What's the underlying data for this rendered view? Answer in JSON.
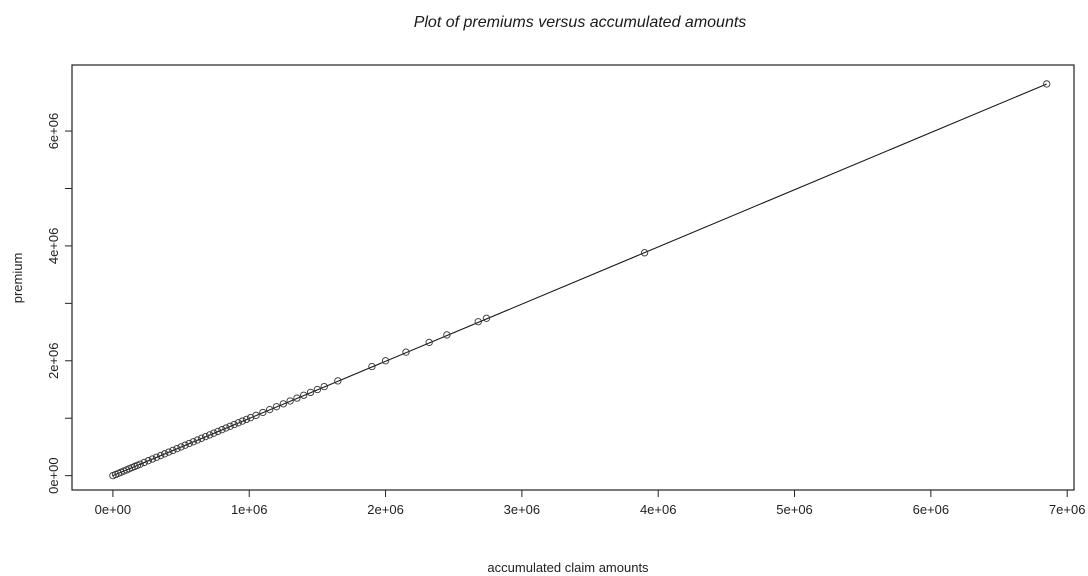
{
  "chart_data": {
    "type": "scatter",
    "title": "Plot of premiums versus accumulated amounts",
    "xlabel": "accumulated claim amounts",
    "ylabel": "premium",
    "xlim": [
      -300000,
      7050000
    ],
    "ylim": [
      -250000,
      7150000
    ],
    "x_ticks": [
      0,
      1000000,
      2000000,
      3000000,
      4000000,
      5000000,
      6000000,
      7000000
    ],
    "x_tick_labels": [
      "0e+00",
      "1e+06",
      "2e+06",
      "3e+06",
      "4e+06",
      "5e+06",
      "6e+06",
      "7e+06"
    ],
    "y_ticks": [
      0,
      1000000,
      2000000,
      3000000,
      4000000,
      5000000,
      6000000
    ],
    "y_tick_labels": [
      "0e+00",
      "",
      "2e+06",
      "",
      "4e+06",
      "",
      "6e+06"
    ],
    "grid": false,
    "series": [
      {
        "marker": "open-circle",
        "x": [
          0,
          20000,
          40000,
          60000,
          80000,
          100000,
          120000,
          140000,
          160000,
          180000,
          200000,
          230000,
          260000,
          290000,
          320000,
          350000,
          380000,
          410000,
          440000,
          470000,
          500000,
          530000,
          560000,
          590000,
          620000,
          650000,
          680000,
          710000,
          740000,
          770000,
          800000,
          830000,
          860000,
          890000,
          920000,
          950000,
          980000,
          1010000,
          1050000,
          1100000,
          1150000,
          1200000,
          1250000,
          1300000,
          1350000,
          1400000,
          1450000,
          1500000,
          1550000,
          1650000,
          1900000,
          2000000,
          2150000,
          2320000,
          2450000,
          2680000,
          2740000,
          3900000,
          6850000
        ],
        "y": [
          0,
          20000,
          40000,
          60000,
          80000,
          100000,
          120000,
          140000,
          160000,
          180000,
          200000,
          230000,
          260000,
          290000,
          320000,
          350000,
          380000,
          410000,
          440000,
          470000,
          500000,
          530000,
          560000,
          590000,
          620000,
          650000,
          680000,
          710000,
          740000,
          770000,
          800000,
          830000,
          860000,
          890000,
          920000,
          950000,
          980000,
          1010000,
          1050000,
          1100000,
          1150000,
          1200000,
          1250000,
          1300000,
          1350000,
          1400000,
          1450000,
          1500000,
          1550000,
          1650000,
          1900000,
          2000000,
          2150000,
          2320000,
          2450000,
          2680000,
          2740000,
          3880000,
          6820000
        ]
      }
    ],
    "fit_line": {
      "x": [
        0,
        6850000
      ],
      "y": [
        0,
        6820000
      ]
    }
  }
}
